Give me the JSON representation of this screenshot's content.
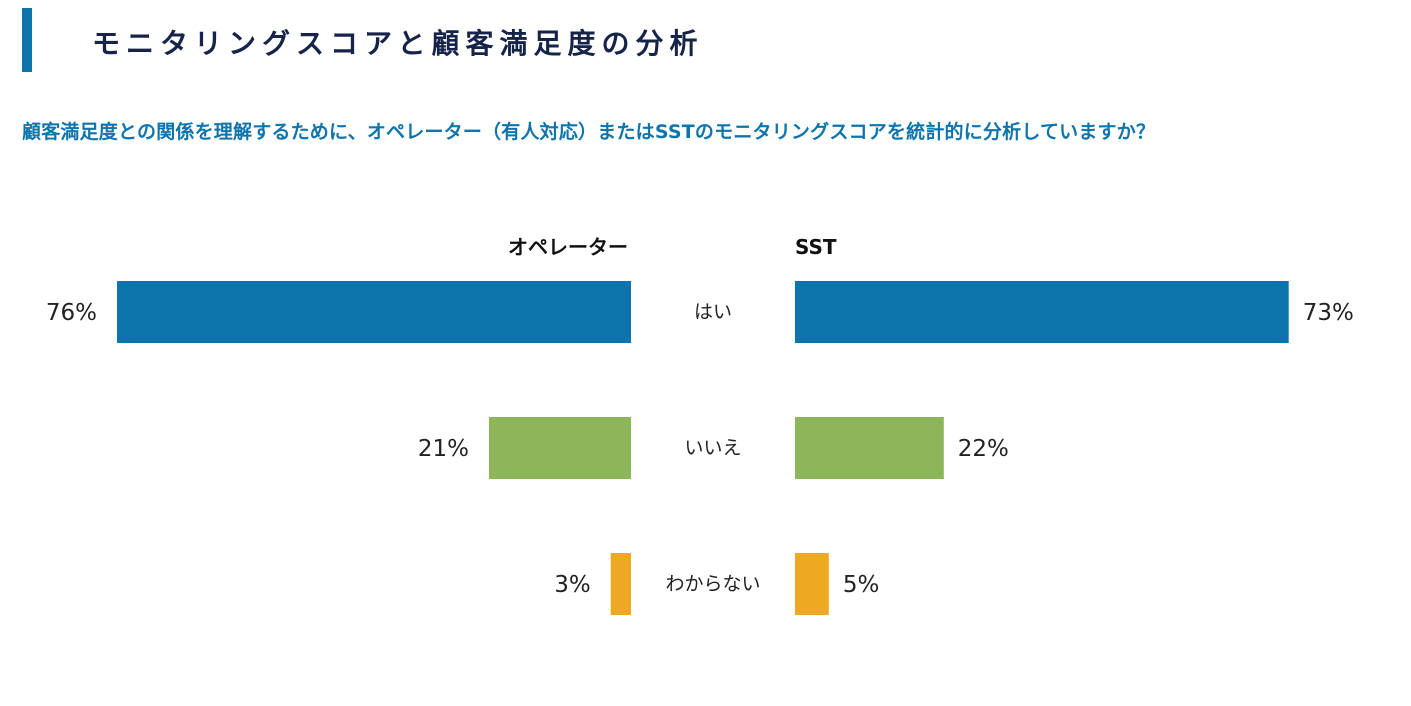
{
  "header": {
    "title": "モニタリングスコアと顧客満足度の分析",
    "question": "顧客満足度との関係を理解するために、オペレーター（有人対応）またはSSTのモニタリングスコアを統計的に分析していますか？"
  },
  "colors": {
    "accent": "#0d75ab",
    "title": "#16244a",
    "yes": "#0d75ab",
    "no": "#8db65a",
    "unknown": "#efa822"
  },
  "chart_data": {
    "type": "bar",
    "orientation": "horizontal-butterfly",
    "categories": [
      "はい",
      "いいえ",
      "わからない"
    ],
    "value_format": "percent",
    "series": [
      {
        "name": "オペレーター",
        "values": [
          76,
          21,
          3
        ]
      },
      {
        "name": "SST",
        "values": [
          73,
          22,
          5
        ]
      }
    ],
    "xlim": [
      0,
      76
    ],
    "grid": false,
    "legend": "none"
  }
}
